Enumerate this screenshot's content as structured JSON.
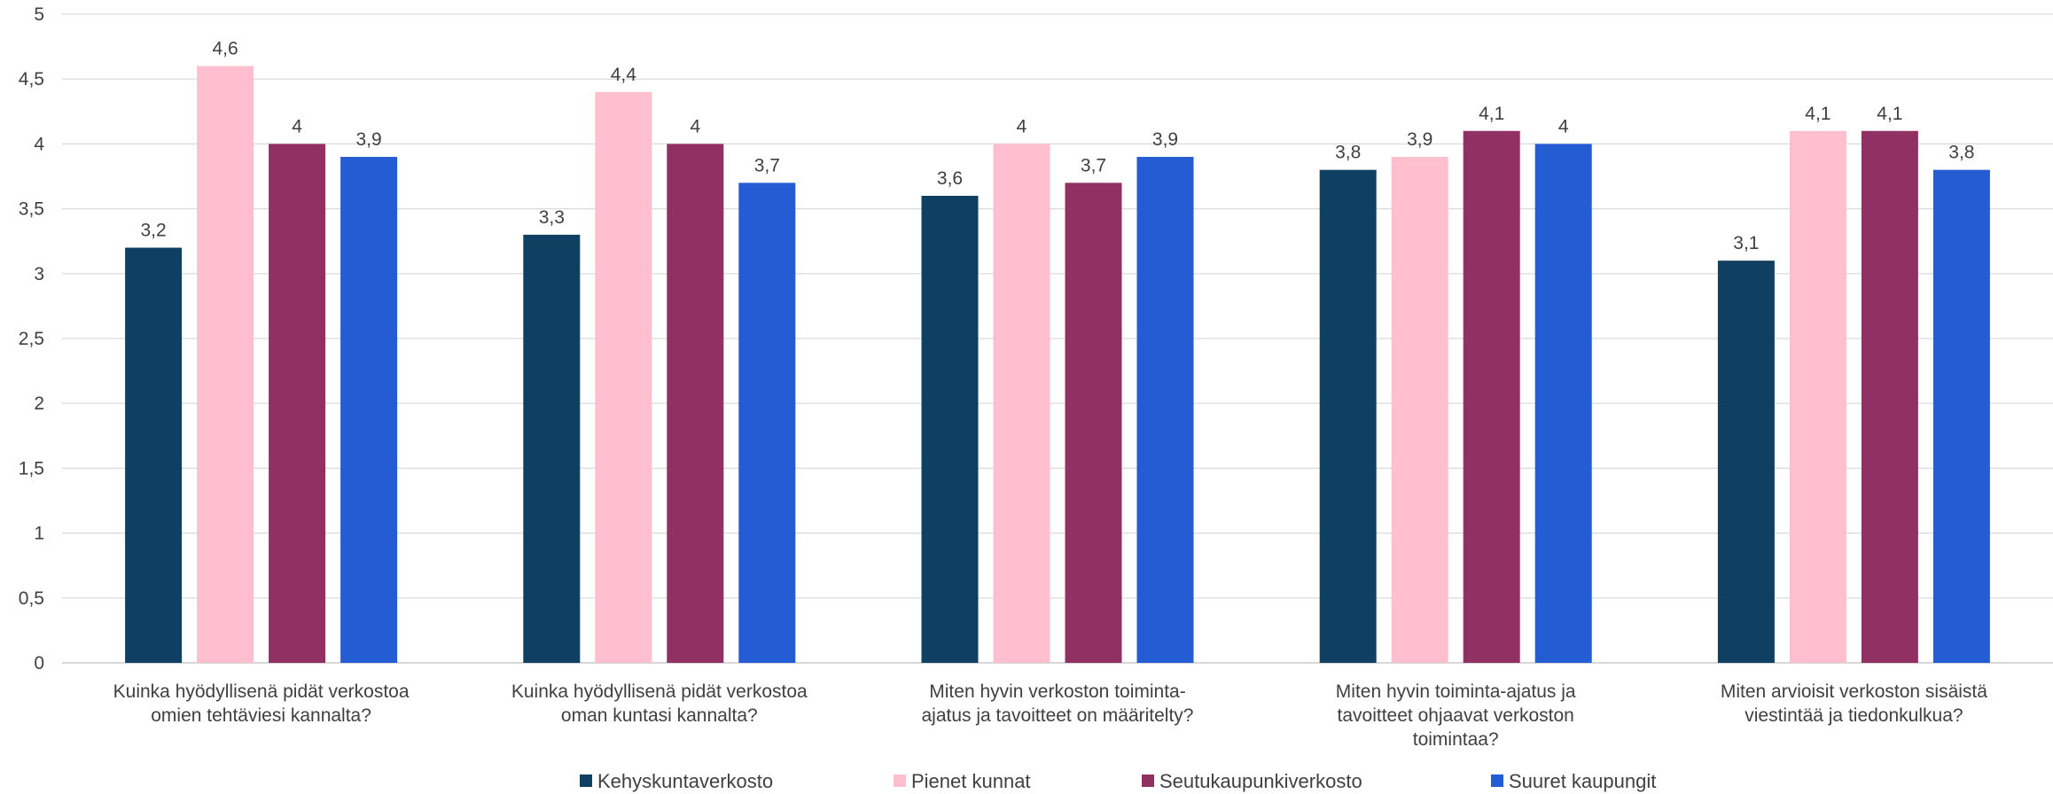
{
  "chart_data": {
    "type": "bar",
    "categories": [
      [
        "Kuinka hyödyllisenä pidät verkostoa",
        "omien tehtäviesi kannalta?"
      ],
      [
        "Kuinka hyödyllisenä pidät verkostoa",
        "oman kuntasi kannalta?"
      ],
      [
        "Miten hyvin verkoston toiminta-",
        "ajatus ja tavoitteet on määritelty?"
      ],
      [
        "Miten hyvin toiminta-ajatus ja",
        "tavoitteet ohjaavat verkoston",
        "toimintaa?"
      ],
      [
        "Miten arvioisit verkoston sisäistä",
        "viestintää ja tiedonkulkua?"
      ]
    ],
    "series": [
      {
        "name": "Kehyskuntaverkosto",
        "color": "#0f3f61",
        "values": [
          3.2,
          3.3,
          3.6,
          3.8,
          3.1
        ],
        "labels": [
          "3,2",
          "3,3",
          "3,6",
          "3,8",
          "3,1"
        ]
      },
      {
        "name": "Pienet kunnat",
        "color": "#ffbfce",
        "values": [
          4.6,
          4.4,
          4.0,
          3.9,
          4.1
        ],
        "labels": [
          "4,6",
          "4,4",
          "4",
          "3,9",
          "4,1"
        ]
      },
      {
        "name": "Seutukaupunkiverkosto",
        "color": "#913163",
        "values": [
          4.0,
          4.0,
          3.7,
          4.1,
          4.1
        ],
        "labels": [
          "4",
          "4",
          "3,7",
          "4,1",
          "4,1"
        ]
      },
      {
        "name": "Suuret kaupungit",
        "color": "#245cd4",
        "values": [
          3.9,
          3.7,
          3.9,
          4.0,
          3.8
        ],
        "labels": [
          "3,9",
          "3,7",
          "3,9",
          "4",
          "3,8"
        ]
      }
    ],
    "ylim": [
      0,
      5
    ],
    "yticks": [
      0,
      0.5,
      1,
      1.5,
      2,
      2.5,
      3,
      3.5,
      4,
      4.5,
      5
    ],
    "ytick_labels": [
      "0",
      "0,5",
      "1",
      "1,5",
      "2",
      "2,5",
      "3",
      "3,5",
      "4",
      "4,5",
      "5"
    ],
    "grid": true,
    "legend_position": "bottom",
    "title": "",
    "xlabel": "",
    "ylabel": ""
  }
}
